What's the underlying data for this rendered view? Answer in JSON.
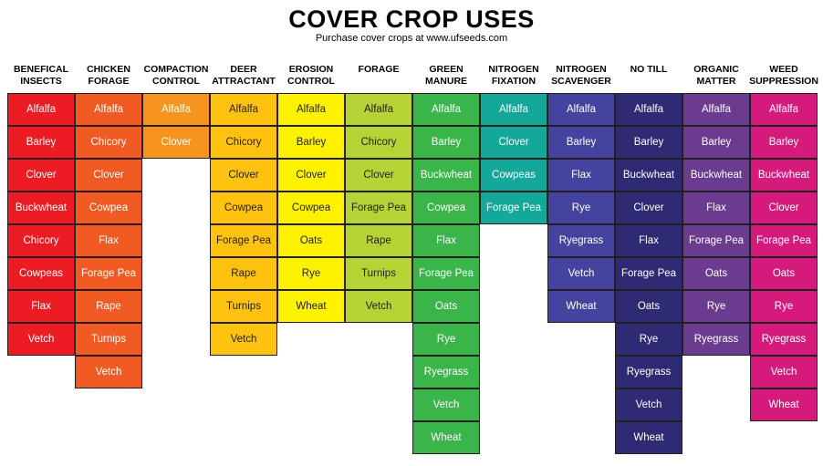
{
  "header": {
    "title": "COVER CROP USES",
    "subtitle": "Purchase cover crops at www.ufseeds.com"
  },
  "columns": [
    {
      "heading": "BENEFICAL\nINSECTS",
      "color": "#ed1c24",
      "text_color": "#ffffff",
      "items": [
        "Alfalfa",
        "Barley",
        "Clover",
        "Buckwheat",
        "Chicory",
        "Cowpeas",
        "Flax",
        "Vetch"
      ]
    },
    {
      "heading": "CHICKEN\nFORAGE",
      "color": "#f15a22",
      "text_color": "#ffffff",
      "items": [
        "Alfalfa",
        "Chicory",
        "Clover",
        "Cowpea",
        "Flax",
        "Forage Pea",
        "Rape",
        "Turnips",
        "Vetch"
      ]
    },
    {
      "heading": "COMPACTION\nCONTROL",
      "color": "#f7941d",
      "text_color": "#ffffff",
      "items": [
        "Alfalfa",
        "Clover"
      ]
    },
    {
      "heading": "DEER\nATTRACTANT",
      "color": "#ffc20e",
      "text_color": "#231f20",
      "items": [
        "Alfalfa",
        "Chicory",
        "Clover",
        "Cowpea",
        "Forage Pea",
        "Rape",
        "Turnips",
        "Vetch"
      ]
    },
    {
      "heading": "EROSION\nCONTROL",
      "color": "#fff200",
      "text_color": "#231f20",
      "items": [
        "Alfalfa",
        "Barley",
        "Clover",
        "Cowpea",
        "Oats",
        "Rye",
        "Wheat"
      ]
    },
    {
      "heading": "FORAGE",
      "color": "#b5d334",
      "text_color": "#231f20",
      "items": [
        "Alfalfa",
        "Chicory",
        "Clover",
        "Forage Pea",
        "Rape",
        "Turnips",
        "Vetch"
      ]
    },
    {
      "heading": "GREEN\nMANURE",
      "color": "#39b54a",
      "text_color": "#ffffff",
      "items": [
        "Alfalfa",
        "Barley",
        "Buckwheat",
        "Cowpea",
        "Flax",
        "Forage Pea",
        "Oats",
        "Rye",
        "Ryegrass",
        "Vetch",
        "Wheat"
      ]
    },
    {
      "heading": "NITROGEN\nFIXATION",
      "color": "#14a89b",
      "text_color": "#ffffff",
      "items": [
        "Alfalfa",
        "Clover",
        "Cowpeas",
        "Forage Pea"
      ]
    },
    {
      "heading": "NITROGEN\nSCAVENGER",
      "color": "#4443a0",
      "text_color": "#ffffff",
      "items": [
        "Alfalfa",
        "Barley",
        "Flax",
        "Rye",
        "Ryegrass",
        "Vetch",
        "Wheat"
      ]
    },
    {
      "heading": "NO TILL",
      "color": "#2e2a73",
      "text_color": "#ffffff",
      "items": [
        "Alfalfa",
        "Barley",
        "Buckwheat",
        "Clover",
        "Flax",
        "Forage Pea",
        "Oats",
        "Rye",
        "Ryegrass",
        "Vetch",
        "Wheat"
      ]
    },
    {
      "heading": "ORGANIC\nMATTER",
      "color": "#6a3b8e",
      "text_color": "#ffffff",
      "items": [
        "Alfalfa",
        "Barley",
        "Buckwheat",
        "Flax",
        "Forage Pea",
        "Oats",
        "Rye",
        "Ryegrass"
      ]
    },
    {
      "heading": "WEED\nSUPPRESSION",
      "color": "#d51a7c",
      "text_color": "#ffffff",
      "items": [
        "Alfalfa",
        "Barley",
        "Buckwheat",
        "Clover",
        "Forage Pea",
        "Oats",
        "Rye",
        "Ryegrass",
        "Vetch",
        "Wheat"
      ]
    }
  ]
}
